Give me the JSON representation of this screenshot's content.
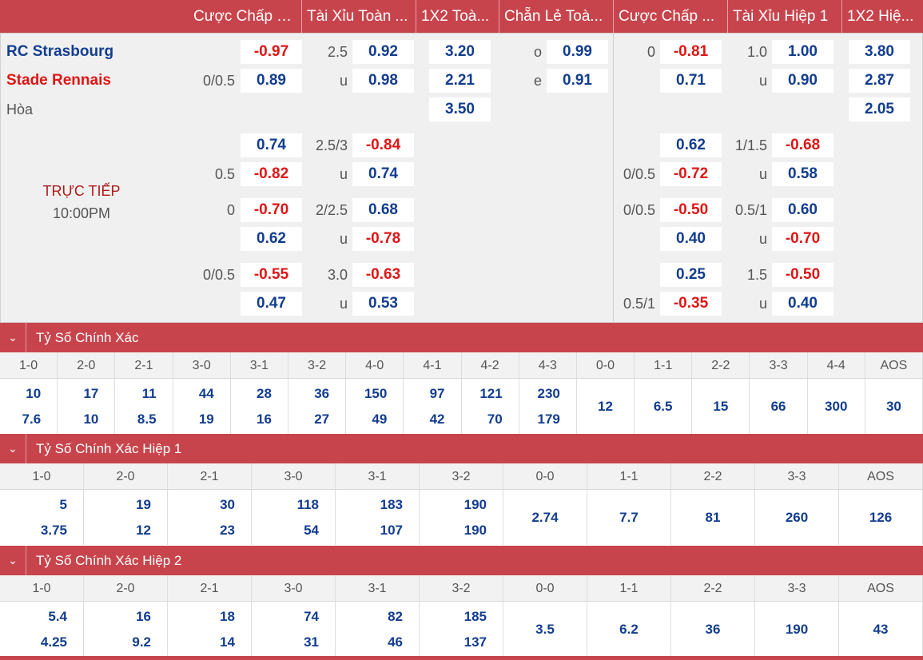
{
  "columns": [
    "Cược Chấp T...",
    "Tài Xỉu Toàn ...",
    "1X2 Toà...",
    "Chẵn Lẻ Toà...",
    "Cược Chấp ...",
    "Tài Xỉu Hiệp 1",
    "1X2 Hiệ..."
  ],
  "match": {
    "home": "RC Strasbourg",
    "away": "Stade Rennais",
    "draw": "Hòa",
    "live": "TRỰC TIẾP",
    "time": "10:00PM"
  },
  "labels": {
    "h1": "0/0.5",
    "t1": "2.5",
    "t1u": "u",
    "oe_o": "o",
    "oe_e": "e",
    "fh1": "0",
    "ft1": "1.0",
    "ft1u": "u",
    "h2": "0.5",
    "t2": "2.5/3",
    "t2u": "u",
    "fh2": "0/0.5",
    "ft2": "1/1.5",
    "ft2u": "u",
    "h3": "0",
    "t3": "2/2.5",
    "t3u": "u",
    "fh3": "0/0.5",
    "ft3": "0.5/1",
    "ft3u": "u",
    "h4": "0/0.5",
    "t4": "3.0",
    "t4u": "u",
    "fh4": "0.5/1",
    "ft4": "1.5",
    "ft4u": "u"
  },
  "odds": {
    "r1a": "-0.97",
    "r1b": "0.89",
    "r1c": "0.92",
    "r1d": "0.98",
    "r1e": "3.20",
    "r1f": "2.21",
    "r1g": "3.50",
    "r1h": "0.99",
    "r1i": "0.91",
    "r1j": "-0.81",
    "r1k": "0.71",
    "r1l": "1.00",
    "r1m": "0.90",
    "r1n": "3.80",
    "r1o": "2.87",
    "r1p": "2.05",
    "r2a": "0.74",
    "r2b": "-0.82",
    "r2c": "-0.84",
    "r2d": "0.74",
    "r2j": "0.62",
    "r2k": "-0.72",
    "r2l": "-0.68",
    "r2m": "0.58",
    "r3a": "-0.70",
    "r3b": "0.62",
    "r3c": "0.68",
    "r3d": "-0.78",
    "r3j": "-0.50",
    "r3k": "0.40",
    "r3l": "0.60",
    "r3m": "-0.70",
    "r4a": "-0.55",
    "r4b": "0.47",
    "r4c": "-0.63",
    "r4d": "0.53",
    "r4j": "0.25",
    "r4k": "-0.35",
    "r4l": "-0.50",
    "r4m": "0.40"
  },
  "sections": [
    {
      "title": "Tỷ Số Chính Xác",
      "headers": [
        "1-0",
        "2-0",
        "2-1",
        "3-0",
        "3-1",
        "3-2",
        "4-0",
        "4-1",
        "4-2",
        "4-3",
        "0-0",
        "1-1",
        "2-2",
        "3-3",
        "4-4",
        "AOS"
      ],
      "pairs": [
        [
          "10",
          "7.6"
        ],
        [
          "17",
          "10"
        ],
        [
          "11",
          "8.5"
        ],
        [
          "44",
          "19"
        ],
        [
          "28",
          "16"
        ],
        [
          "36",
          "27"
        ],
        [
          "150",
          "49"
        ],
        [
          "97",
          "42"
        ],
        [
          "121",
          "70"
        ],
        [
          "230",
          "179"
        ]
      ],
      "singles": [
        "12",
        "6.5",
        "15",
        "66",
        "300",
        "30"
      ]
    },
    {
      "title": "Tỷ Số Chính Xác Hiệp 1",
      "headers": [
        "1-0",
        "2-0",
        "2-1",
        "3-0",
        "3-1",
        "3-2",
        "0-0",
        "1-1",
        "2-2",
        "3-3",
        "AOS"
      ],
      "pairs": [
        [
          "5",
          "3.75"
        ],
        [
          "19",
          "12"
        ],
        [
          "30",
          "23"
        ],
        [
          "118",
          "54"
        ],
        [
          "183",
          "107"
        ],
        [
          "190",
          "190"
        ]
      ],
      "singles": [
        "2.74",
        "7.7",
        "81",
        "260",
        "126"
      ]
    },
    {
      "title": "Tỷ Số Chính Xác Hiệp 2",
      "headers": [
        "1-0",
        "2-0",
        "2-1",
        "3-0",
        "3-1",
        "3-2",
        "0-0",
        "1-1",
        "2-2",
        "3-3",
        "AOS"
      ],
      "pairs": [
        [
          "5.4",
          "4.25"
        ],
        [
          "16",
          "9.2"
        ],
        [
          "18",
          "14"
        ],
        [
          "74",
          "31"
        ],
        [
          "82",
          "46"
        ],
        [
          "185",
          "137"
        ]
      ],
      "singles": [
        "3.5",
        "6.2",
        "36",
        "190",
        "43"
      ]
    }
  ]
}
